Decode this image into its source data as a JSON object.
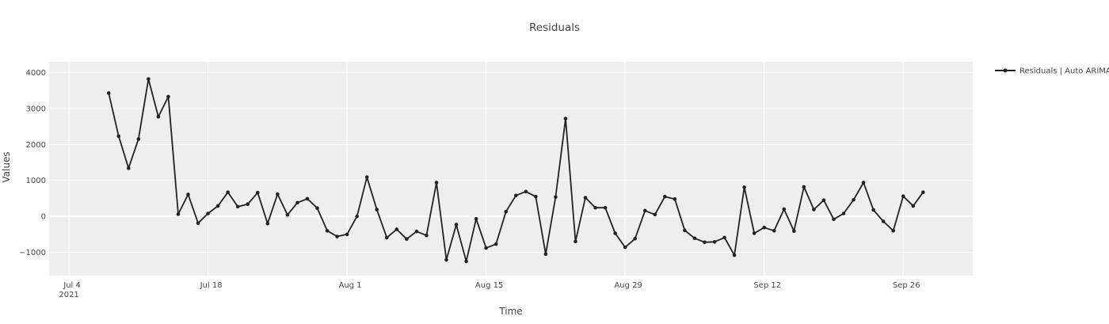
{
  "chart_data": {
    "type": "line",
    "title": "Residuals",
    "xlabel": "Time",
    "ylabel": "Values",
    "x_range": [
      "2021-07-02",
      "2021-10-03"
    ],
    "ylim": [
      -1650,
      4300
    ],
    "grid": true,
    "legend_position": "top-right",
    "line_color": "#222222",
    "plot_background": "#eeeeee",
    "x_ticks": [
      {
        "date": "2021-07-04",
        "label": "Jul 4",
        "sublabel": "2021"
      },
      {
        "date": "2021-07-18",
        "label": "Jul 18"
      },
      {
        "date": "2021-08-01",
        "label": "Aug 1"
      },
      {
        "date": "2021-08-15",
        "label": "Aug 15"
      },
      {
        "date": "2021-08-29",
        "label": "Aug 29"
      },
      {
        "date": "2021-09-12",
        "label": "Sep 12"
      },
      {
        "date": "2021-09-26",
        "label": "Sep 26"
      }
    ],
    "y_ticks": [
      {
        "value": 4000,
        "label": "4000"
      },
      {
        "value": 3000,
        "label": "3000"
      },
      {
        "value": 2000,
        "label": "2000"
      },
      {
        "value": 1000,
        "label": "1000"
      },
      {
        "value": 0,
        "label": "0"
      },
      {
        "value": -1000,
        "label": "−1000"
      }
    ],
    "series": [
      {
        "name": "Residuals | Auto ARIMA",
        "x": [
          "2021-07-08",
          "2021-07-09",
          "2021-07-10",
          "2021-07-11",
          "2021-07-12",
          "2021-07-13",
          "2021-07-14",
          "2021-07-15",
          "2021-07-16",
          "2021-07-17",
          "2021-07-18",
          "2021-07-19",
          "2021-07-20",
          "2021-07-21",
          "2021-07-22",
          "2021-07-23",
          "2021-07-24",
          "2021-07-25",
          "2021-07-26",
          "2021-07-27",
          "2021-07-28",
          "2021-07-29",
          "2021-07-30",
          "2021-07-31",
          "2021-08-01",
          "2021-08-02",
          "2021-08-03",
          "2021-08-04",
          "2021-08-05",
          "2021-08-06",
          "2021-08-07",
          "2021-08-08",
          "2021-08-09",
          "2021-08-10",
          "2021-08-11",
          "2021-08-12",
          "2021-08-13",
          "2021-08-14",
          "2021-08-15",
          "2021-08-16",
          "2021-08-17",
          "2021-08-18",
          "2021-08-19",
          "2021-08-20",
          "2021-08-21",
          "2021-08-22",
          "2021-08-23",
          "2021-08-24",
          "2021-08-25",
          "2021-08-26",
          "2021-08-27",
          "2021-08-28",
          "2021-08-29",
          "2021-08-30",
          "2021-08-31",
          "2021-09-01",
          "2021-09-02",
          "2021-09-03",
          "2021-09-04",
          "2021-09-05",
          "2021-09-06",
          "2021-09-07",
          "2021-09-08",
          "2021-09-09",
          "2021-09-10",
          "2021-09-11",
          "2021-09-12",
          "2021-09-13",
          "2021-09-14",
          "2021-09-15",
          "2021-09-16",
          "2021-09-17",
          "2021-09-18",
          "2021-09-19",
          "2021-09-20",
          "2021-09-21",
          "2021-09-22",
          "2021-09-23",
          "2021-09-24",
          "2021-09-25",
          "2021-09-26",
          "2021-09-27",
          "2021-09-28"
        ],
        "y": [
          3430,
          2230,
          1340,
          2150,
          3820,
          2770,
          3330,
          60,
          610,
          -190,
          80,
          290,
          670,
          270,
          340,
          660,
          -200,
          620,
          40,
          380,
          490,
          230,
          -400,
          -560,
          -500,
          0,
          1090,
          190,
          -590,
          -360,
          -630,
          -420,
          -530,
          940,
          -1210,
          -230,
          -1250,
          -70,
          -880,
          -770,
          130,
          580,
          690,
          550,
          -1050,
          540,
          2720,
          -700,
          520,
          240,
          240,
          -470,
          -860,
          -620,
          160,
          50,
          550,
          480,
          -390,
          -610,
          -720,
          -710,
          -590,
          -1080,
          810,
          -470,
          -310,
          -400,
          200,
          -410,
          820,
          190,
          450,
          -80,
          80,
          460,
          940,
          180,
          -140,
          -400,
          560,
          290,
          670
        ]
      }
    ]
  }
}
